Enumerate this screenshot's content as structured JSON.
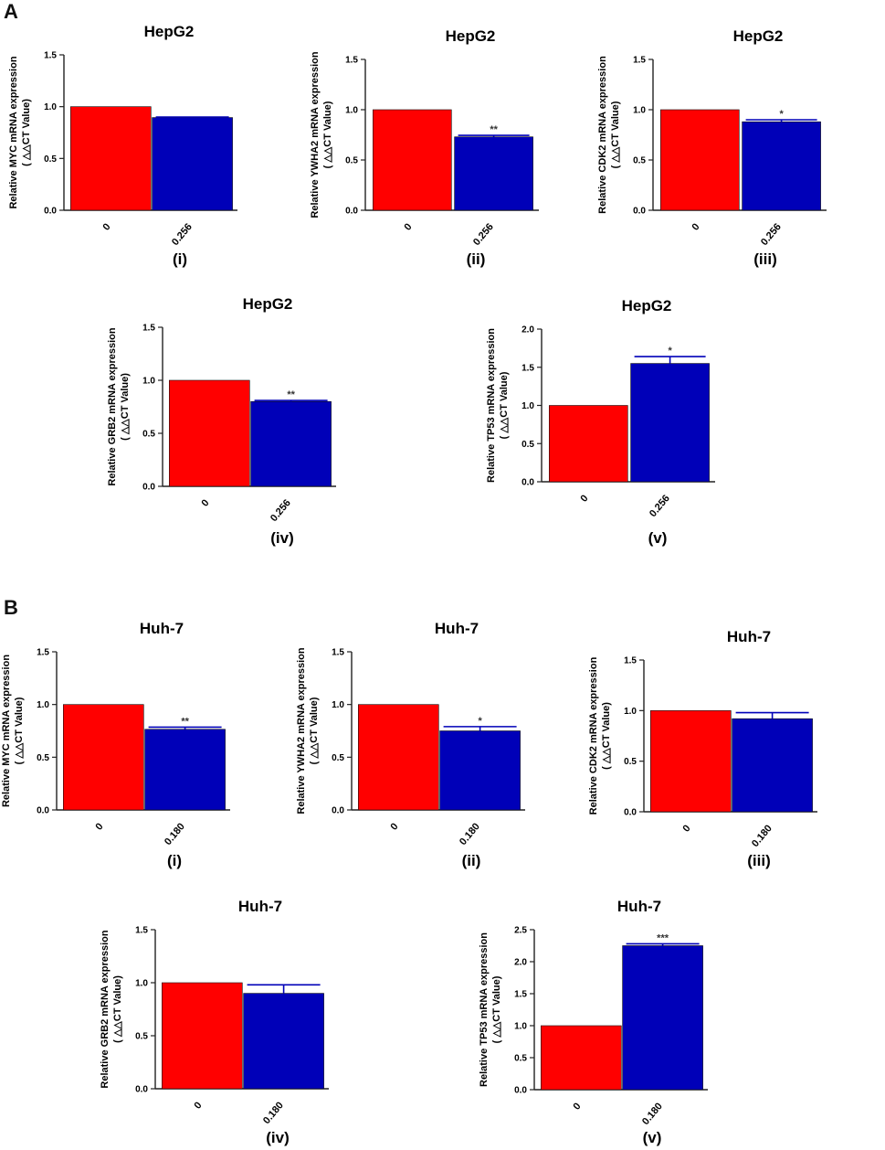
{
  "panels": [
    {
      "letter": "A"
    },
    {
      "letter": "B"
    }
  ],
  "chart_data": [
    {
      "type": "bar",
      "panel": "A",
      "sublabel": "(i)",
      "title": "HepG2",
      "ylabel_line1": "Relative MYC  mRNA expression",
      "ylabel_line2": "( △△CT Value)",
      "categories": [
        "0",
        "0.256"
      ],
      "values": [
        1.0,
        0.895
      ],
      "errors": [
        0,
        0.005
      ],
      "significance": [
        "",
        ""
      ],
      "ylim": [
        0,
        1.5
      ],
      "yticks": [
        "0.0",
        "0.5",
        "1.0",
        "1.5"
      ],
      "colors": [
        "#ff0000",
        "#0000b8"
      ]
    },
    {
      "type": "bar",
      "panel": "A",
      "sublabel": "(ii)",
      "title": "HepG2",
      "ylabel_line1": "Relative YWHA2  mRNA expression",
      "ylabel_line2": "( △△CT Value)",
      "categories": [
        "0",
        "0.256"
      ],
      "values": [
        1.0,
        0.73
      ],
      "errors": [
        0,
        0.015
      ],
      "significance": [
        "",
        "**"
      ],
      "ylim": [
        0,
        1.5
      ],
      "yticks": [
        "0.0",
        "0.5",
        "1.0",
        "1.5"
      ],
      "colors": [
        "#ff0000",
        "#0000b8"
      ]
    },
    {
      "type": "bar",
      "panel": "A",
      "sublabel": "(iii)",
      "title": "HepG2",
      "ylabel_line1": "Relative CDK2  mRNA expression",
      "ylabel_line2": "( △△CT Value)",
      "categories": [
        "0",
        "0.256"
      ],
      "values": [
        1.0,
        0.88
      ],
      "errors": [
        0,
        0.02
      ],
      "significance": [
        "",
        "*"
      ],
      "ylim": [
        0,
        1.5
      ],
      "yticks": [
        "0.0",
        "0.5",
        "1.0",
        "1.5"
      ],
      "colors": [
        "#ff0000",
        "#0000b8"
      ]
    },
    {
      "type": "bar",
      "panel": "A",
      "sublabel": "(iv)",
      "title": "HepG2",
      "ylabel_line1": "Relative GRB2  mRNA expression",
      "ylabel_line2": "( △△CT Value)",
      "categories": [
        "0",
        "0.256"
      ],
      "values": [
        1.0,
        0.8
      ],
      "errors": [
        0,
        0.01
      ],
      "significance": [
        "",
        "**"
      ],
      "ylim": [
        0,
        1.5
      ],
      "yticks": [
        "0.0",
        "0.5",
        "1.0",
        "1.5"
      ],
      "colors": [
        "#ff0000",
        "#0000b8"
      ]
    },
    {
      "type": "bar",
      "panel": "A",
      "sublabel": "(v)",
      "title": "HepG2",
      "ylabel_line1": "Relative TP53  mRNA expression",
      "ylabel_line2": "( △△CT Value)",
      "categories": [
        "0",
        "0.256"
      ],
      "values": [
        1.0,
        1.55
      ],
      "errors": [
        0,
        0.09
      ],
      "significance": [
        "",
        "*"
      ],
      "ylim": [
        0,
        2.0
      ],
      "yticks": [
        "0.0",
        "0.5",
        "1.0",
        "1.5",
        "2.0"
      ],
      "colors": [
        "#ff0000",
        "#0000b8"
      ]
    },
    {
      "type": "bar",
      "panel": "B",
      "sublabel": "(i)",
      "title": "Huh-7",
      "ylabel_line1": "Relative MYC  mRNA expression",
      "ylabel_line2": "( △△CT Value)",
      "categories": [
        "0",
        "0.180"
      ],
      "values": [
        1.0,
        0.765
      ],
      "errors": [
        0,
        0.02
      ],
      "significance": [
        "",
        "**"
      ],
      "ylim": [
        0,
        1.5
      ],
      "yticks": [
        "0.0",
        "0.5",
        "1.0",
        "1.5"
      ],
      "colors": [
        "#ff0000",
        "#0000b8"
      ]
    },
    {
      "type": "bar",
      "panel": "B",
      "sublabel": "(ii)",
      "title": "Huh-7",
      "ylabel_line1": "Relative YWHA2  mRNA expression",
      "ylabel_line2": "( △△CT Value)",
      "categories": [
        "0",
        "0.180"
      ],
      "values": [
        1.0,
        0.75
      ],
      "errors": [
        0,
        0.04
      ],
      "significance": [
        "",
        "*"
      ],
      "ylim": [
        0,
        1.5
      ],
      "yticks": [
        "0.0",
        "0.5",
        "1.0",
        "1.5"
      ],
      "colors": [
        "#ff0000",
        "#0000b8"
      ]
    },
    {
      "type": "bar",
      "panel": "B",
      "sublabel": "(iii)",
      "title": "Huh-7",
      "ylabel_line1": "Relative CDK2  mRNA expression",
      "ylabel_line2": "( △△CT Value)",
      "categories": [
        "0",
        "0.180"
      ],
      "values": [
        1.0,
        0.92
      ],
      "errors": [
        0,
        0.06
      ],
      "significance": [
        "",
        ""
      ],
      "ylim": [
        0,
        1.5
      ],
      "yticks": [
        "0.0",
        "0.5",
        "1.0",
        "1.5"
      ],
      "colors": [
        "#ff0000",
        "#0000b8"
      ]
    },
    {
      "type": "bar",
      "panel": "B",
      "sublabel": "(iv)",
      "title": "Huh-7",
      "ylabel_line1": "Relative GRB2  mRNA expression",
      "ylabel_line2": "( △△CT Value)",
      "categories": [
        "0",
        "0.180"
      ],
      "values": [
        1.0,
        0.9
      ],
      "errors": [
        0,
        0.08
      ],
      "significance": [
        "",
        ""
      ],
      "ylim": [
        0,
        1.5
      ],
      "yticks": [
        "0.0",
        "0.5",
        "1.0",
        "1.5"
      ],
      "colors": [
        "#ff0000",
        "#0000b8"
      ]
    },
    {
      "type": "bar",
      "panel": "B",
      "sublabel": "(v)",
      "title": "Huh-7",
      "ylabel_line1": "Relative TP53  mRNA expression",
      "ylabel_line2": "( △△CT Value)",
      "categories": [
        "0",
        "0.180"
      ],
      "values": [
        1.0,
        2.25
      ],
      "errors": [
        0,
        0.03
      ],
      "significance": [
        "",
        "***"
      ],
      "ylim": [
        0,
        2.5
      ],
      "yticks": [
        "0.0",
        "0.5",
        "1.0",
        "1.5",
        "2.0",
        "2.5"
      ],
      "colors": [
        "#ff0000",
        "#0000b8"
      ]
    }
  ]
}
